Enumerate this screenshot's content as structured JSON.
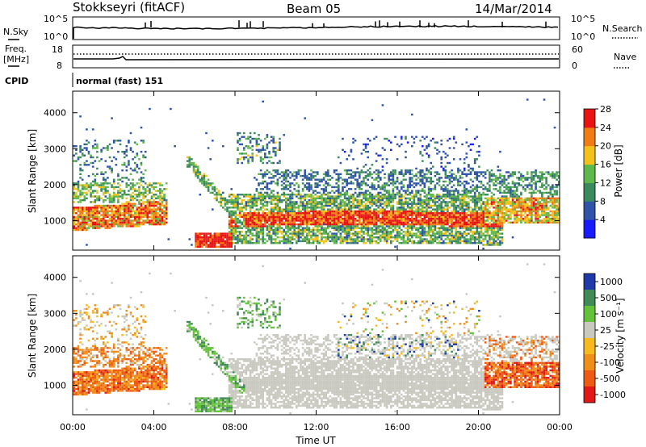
{
  "header": {
    "station": "Stokkseyri (fitACF)",
    "beam": "Beam 05",
    "date": "14/Mar/2014"
  },
  "nsky_panel": {
    "left_label": "N.Sky",
    "right_label": "N.Search",
    "left_ticks": [
      "10^5",
      "10^0"
    ],
    "right_ticks": [
      "10^5",
      "10^0"
    ]
  },
  "freq_panel": {
    "left_label_1": "Freq.",
    "left_label_2": "[MHz]",
    "right_label": "Nave",
    "left_ticks": [
      "18",
      "8"
    ],
    "right_ticks": [
      "60",
      "0"
    ]
  },
  "cpid_panel": {
    "label": "CPID",
    "value": "normal (fast) 151"
  },
  "chart_data": [
    {
      "type": "heatmap",
      "title": "",
      "ylabel": "Slant Range [km]",
      "xlabel": "",
      "ylim": [
        180,
        4600
      ],
      "yticks": [
        "1000",
        "2000",
        "3000",
        "4000"
      ],
      "colorbar_label": "Power [dB]",
      "colorbar_ticks": [
        "4",
        "8",
        "12",
        "16",
        "20",
        "24",
        "28"
      ],
      "colors": [
        "#1a1aff",
        "#2f53a8",
        "#3a8a5e",
        "#5fb84a",
        "#f2c21a",
        "#f07c13",
        "#e81414"
      ]
    },
    {
      "type": "heatmap",
      "title": "",
      "ylabel": "Slant Range [km]",
      "xlabel": "Time UT",
      "ylim": [
        180,
        4600
      ],
      "yticks": [
        "1000",
        "2000",
        "3000",
        "4000"
      ],
      "xticks": [
        "00:00",
        "04:00",
        "08:00",
        "12:00",
        "16:00",
        "20:00",
        "00:00"
      ],
      "colorbar_label": "Velocity  [m s⁻¹]",
      "colorbar_ticks": [
        "1000",
        "500",
        "100",
        "25",
        "-25",
        "-100",
        "-500",
        "-1000"
      ],
      "colors": [
        "#1f3aa8",
        "#3f8a56",
        "#63c23a",
        "#c9c9c0",
        "#f6b91e",
        "#f08e1a",
        "#ee5a14",
        "#e01818"
      ]
    }
  ]
}
